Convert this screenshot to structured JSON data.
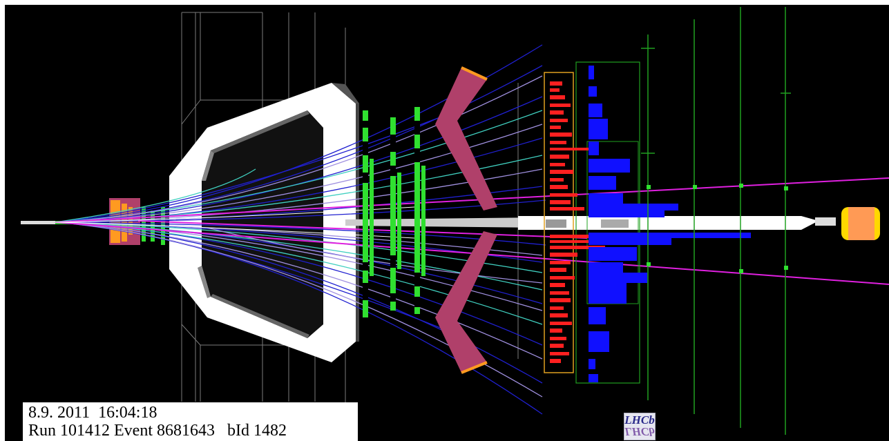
{
  "event": {
    "date_time": "8.9. 2011  16:04:18",
    "run_line": "Run 101412 Event 8681643   bId 1482"
  },
  "logo": {
    "text": "LHCb"
  },
  "colors": {
    "background": "#000000",
    "magnet": "#ffffff",
    "rich_mirror": "#b0406a",
    "track_blue": "#2020d0",
    "track_cyan": "#40d0c0",
    "track_lavender": "#a090e0",
    "track_magenta": "#e020e0",
    "hits_green": "#30e030",
    "calo_red": "#ff2020",
    "hcal_blue": "#1010ff",
    "muon_green": "#20a020",
    "calo_frame": "#e0a020",
    "vertex_orange": "#ff9a20"
  },
  "icons": [
    "lhcb-logo-icon"
  ]
}
